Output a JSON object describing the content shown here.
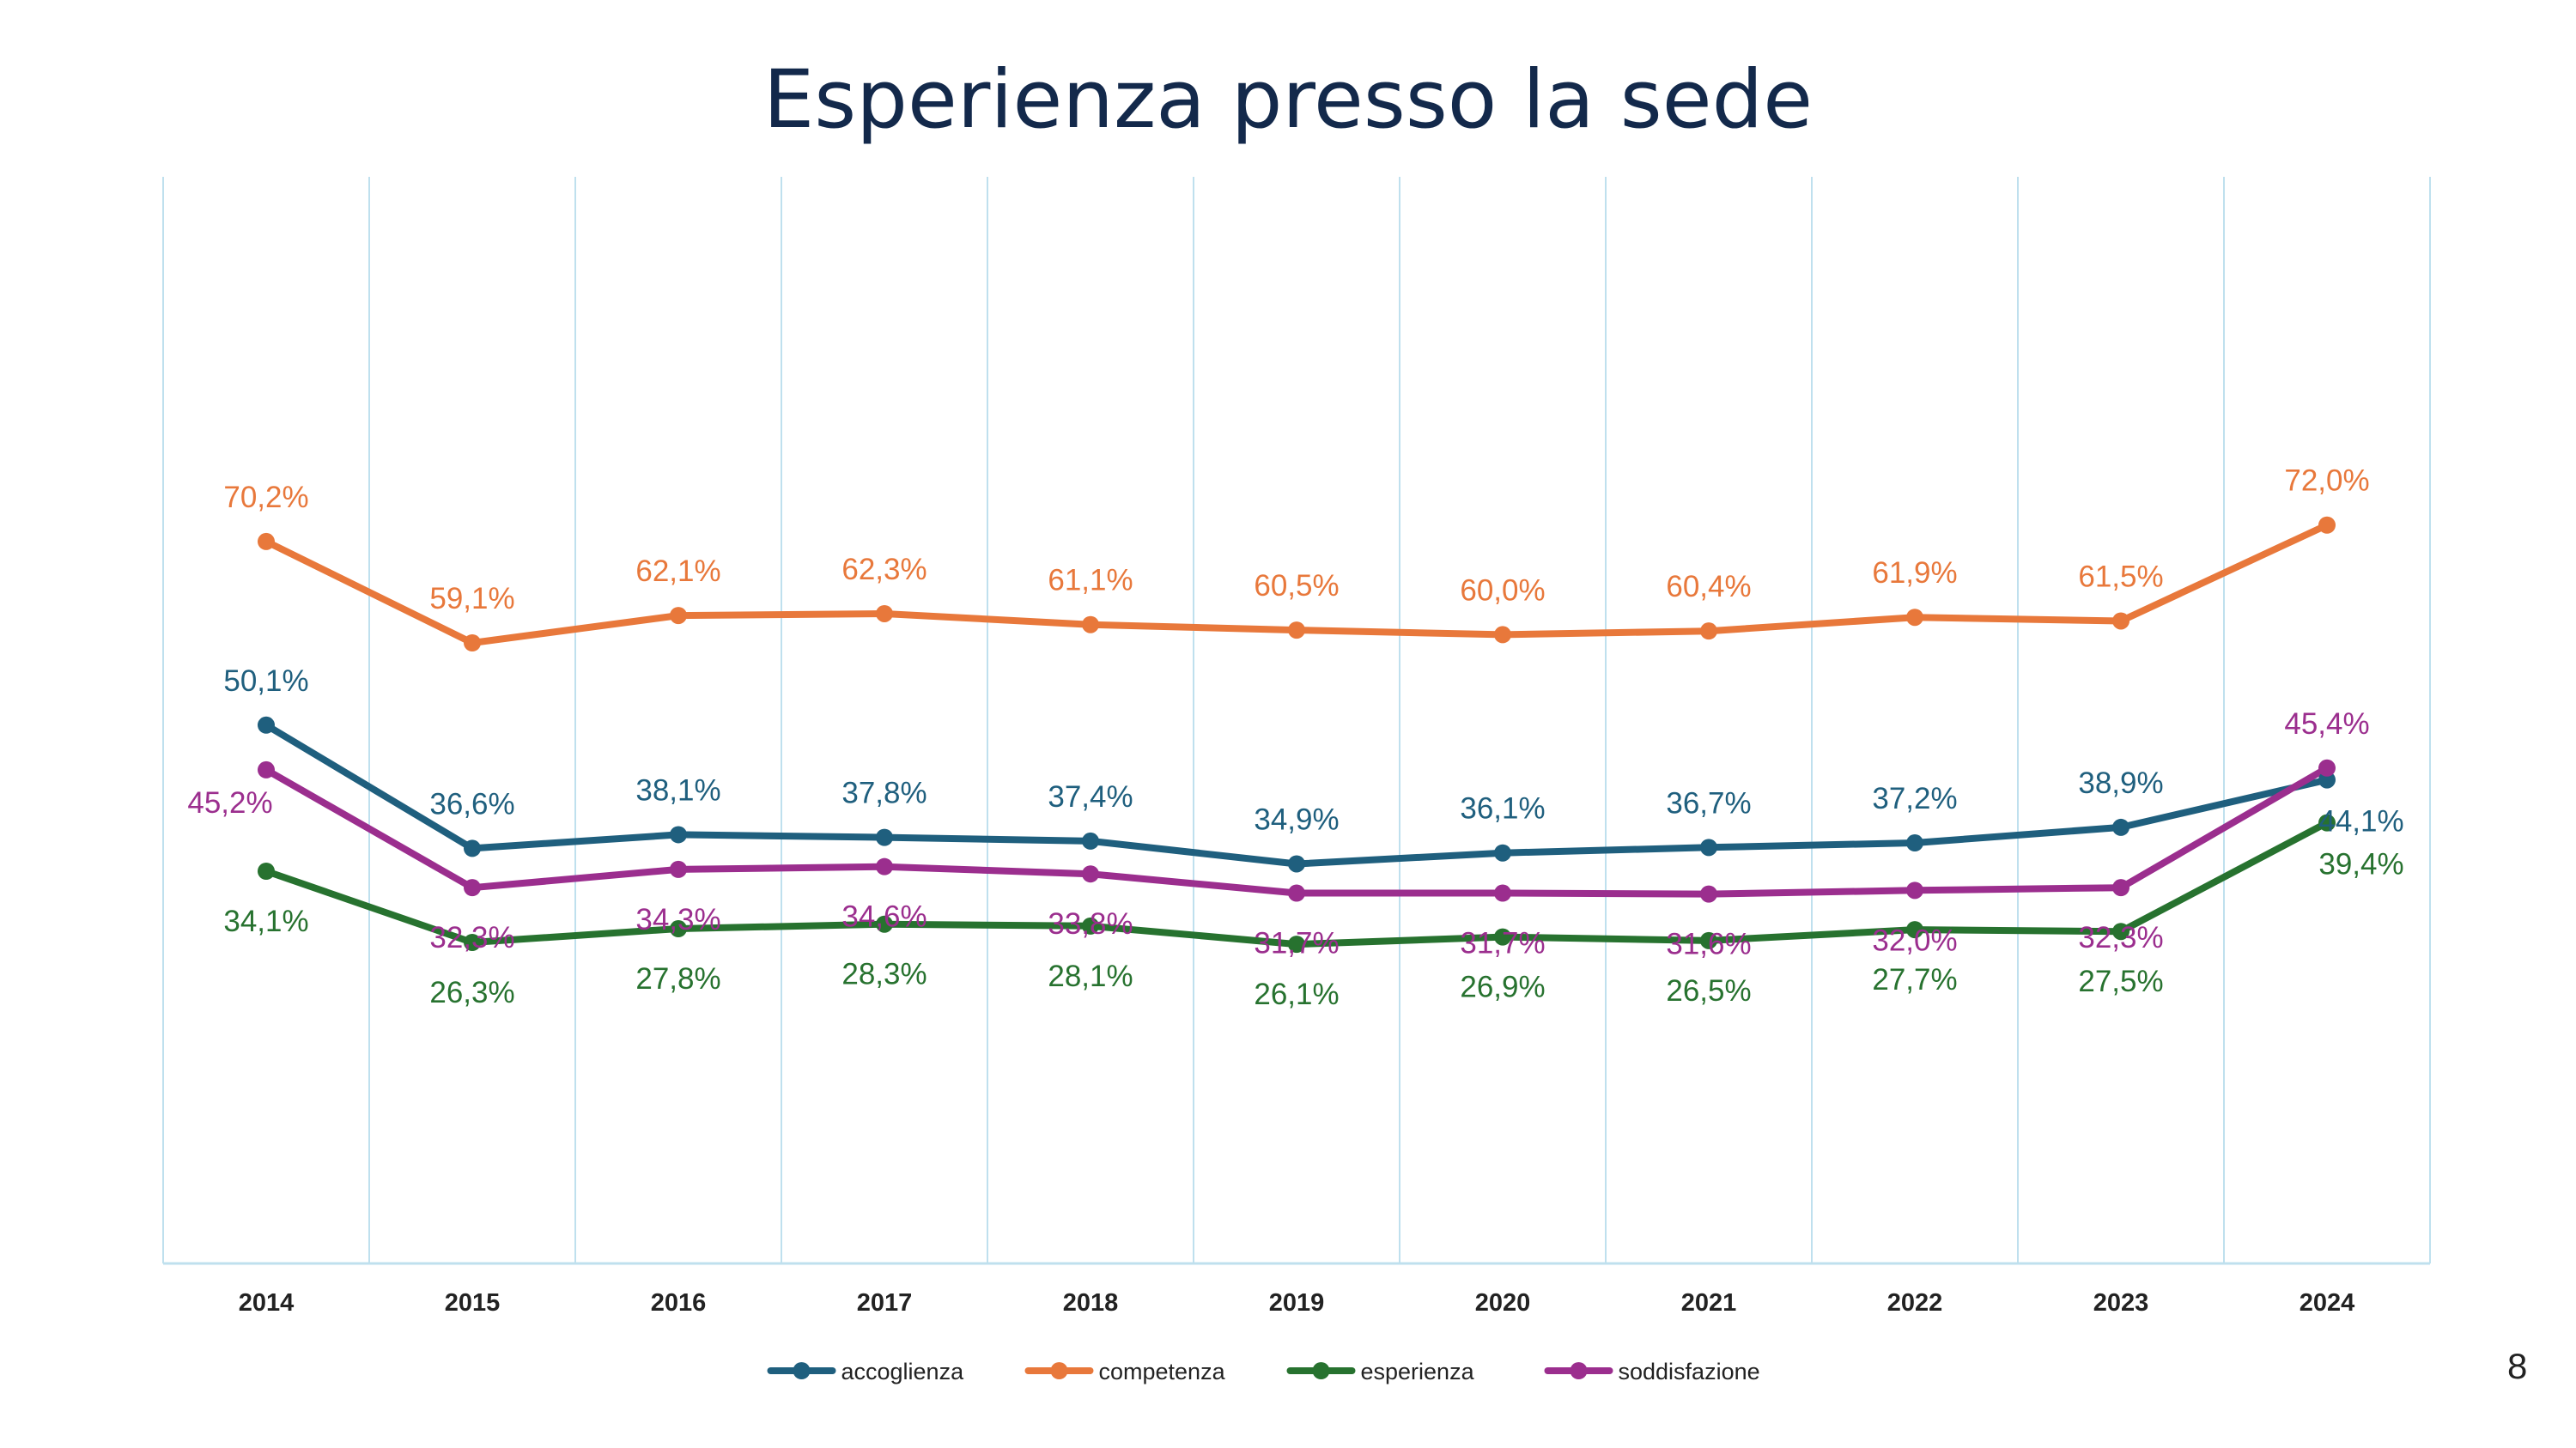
{
  "slide": {
    "title": "Esperienza presso la sede",
    "page_number": "8"
  },
  "chart_data": {
    "type": "line",
    "title": "Esperienza presso la sede",
    "xlabel": "",
    "ylabel": "",
    "categories": [
      "2014",
      "2015",
      "2016",
      "2017",
      "2018",
      "2019",
      "2020",
      "2021",
      "2022",
      "2023",
      "2024"
    ],
    "ylim": [
      0,
      100
    ],
    "grid": "vertical",
    "legend_placement": "bottom",
    "series": [
      {
        "name": "accoglienza",
        "color": "#1F5F7E",
        "values": [
          50.1,
          36.6,
          38.1,
          37.8,
          37.4,
          34.9,
          36.1,
          36.7,
          37.2,
          38.9,
          44.1
        ],
        "labels": [
          "50,1%",
          "36,6%",
          "38,1%",
          "37,8%",
          "37,4%",
          "34,9%",
          "36,1%",
          "36,7%",
          "37,2%",
          "38,9%",
          "44,1%"
        ]
      },
      {
        "name": "competenza",
        "color": "#E8783B",
        "values": [
          70.2,
          59.1,
          62.1,
          62.3,
          61.1,
          60.5,
          60.0,
          60.4,
          61.9,
          61.5,
          72.0
        ],
        "labels": [
          "70,2%",
          "59,1%",
          "62,1%",
          "62,3%",
          "61,1%",
          "60,5%",
          "60,0%",
          "60,4%",
          "61,9%",
          "61,5%",
          "72,0%"
        ]
      },
      {
        "name": "esperienza",
        "color": "#27722F",
        "values": [
          34.1,
          26.3,
          27.8,
          28.3,
          28.1,
          26.1,
          26.9,
          26.5,
          27.7,
          27.5,
          39.4
        ],
        "labels": [
          "34,1%",
          "26,3%",
          "27,8%",
          "28,3%",
          "28,1%",
          "26,1%",
          "26,9%",
          "26,5%",
          "27,7%",
          "27,5%",
          "39,4%"
        ]
      },
      {
        "name": "soddisfazione",
        "color": "#9B2E8E",
        "values": [
          45.2,
          32.3,
          34.3,
          34.6,
          33.8,
          31.7,
          31.7,
          31.6,
          32.0,
          32.3,
          45.4
        ],
        "labels": [
          "45,2%",
          "32,3%",
          "34,3%",
          "34,6%",
          "33,8%",
          "31,7%",
          "31,7%",
          "31,6%",
          "32,0%",
          "32,3%",
          "45,4%"
        ]
      }
    ]
  }
}
